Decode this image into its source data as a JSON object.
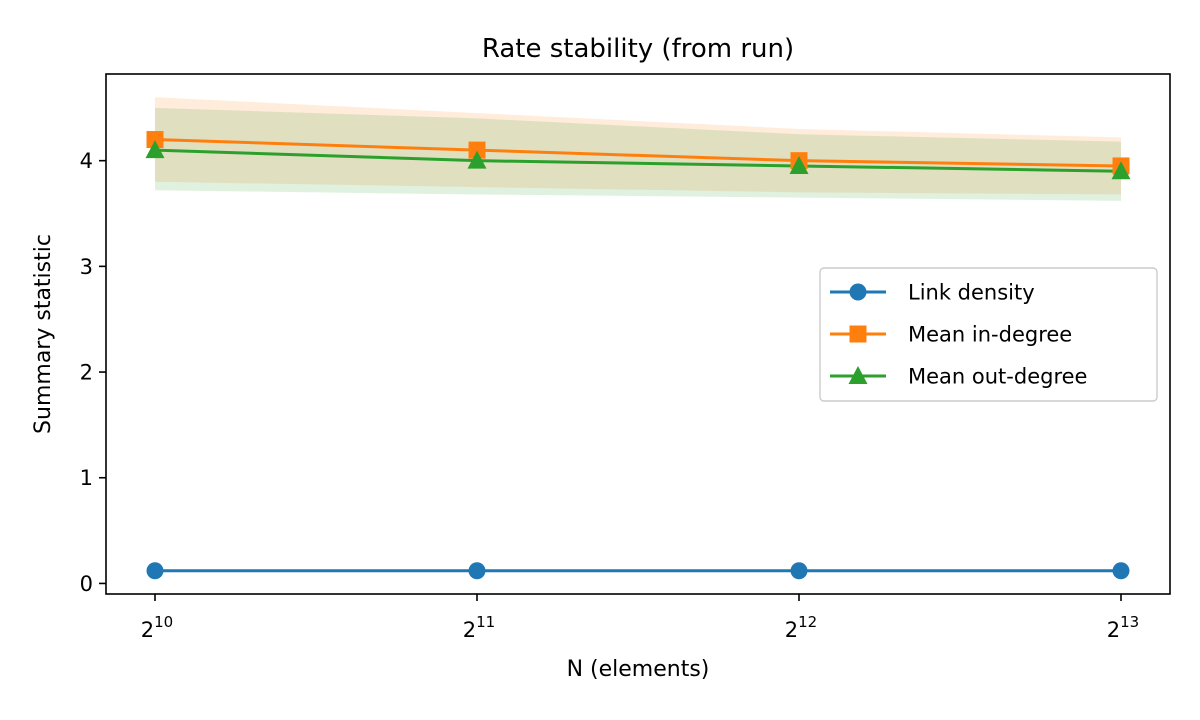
{
  "chart_data": {
    "type": "line",
    "title": "Rate stability (from run)",
    "xlabel": "N (elements)",
    "ylabel": "Summary statistic",
    "x_scale": "log2",
    "x_base": "2",
    "x_exponents": [
      "10",
      "11",
      "12",
      "13"
    ],
    "x": [
      1024,
      2048,
      4096,
      8192
    ],
    "ylim": [
      -0.1,
      4.82
    ],
    "y_ticks": [
      "0",
      "1",
      "2",
      "3",
      "4"
    ],
    "grid": false,
    "legend_position": "center-right",
    "series": [
      {
        "name": "Link density",
        "color": "#1f77b4",
        "marker": "circle",
        "values": [
          0.12,
          0.12,
          0.12,
          0.12
        ],
        "band": null
      },
      {
        "name": "Mean in-degree",
        "color": "#ff7f0e",
        "marker": "square",
        "values": [
          4.2,
          4.1,
          4.0,
          3.95
        ],
        "band": {
          "lower": [
            3.8,
            3.75,
            3.7,
            3.68
          ],
          "upper": [
            4.6,
            4.45,
            4.3,
            4.22
          ]
        }
      },
      {
        "name": "Mean out-degree",
        "color": "#2ca02c",
        "marker": "triangle",
        "values": [
          4.1,
          4.0,
          3.95,
          3.9
        ],
        "band": {
          "lower": [
            3.72,
            3.68,
            3.65,
            3.62
          ],
          "upper": [
            4.5,
            4.4,
            4.25,
            4.18
          ]
        }
      }
    ]
  }
}
